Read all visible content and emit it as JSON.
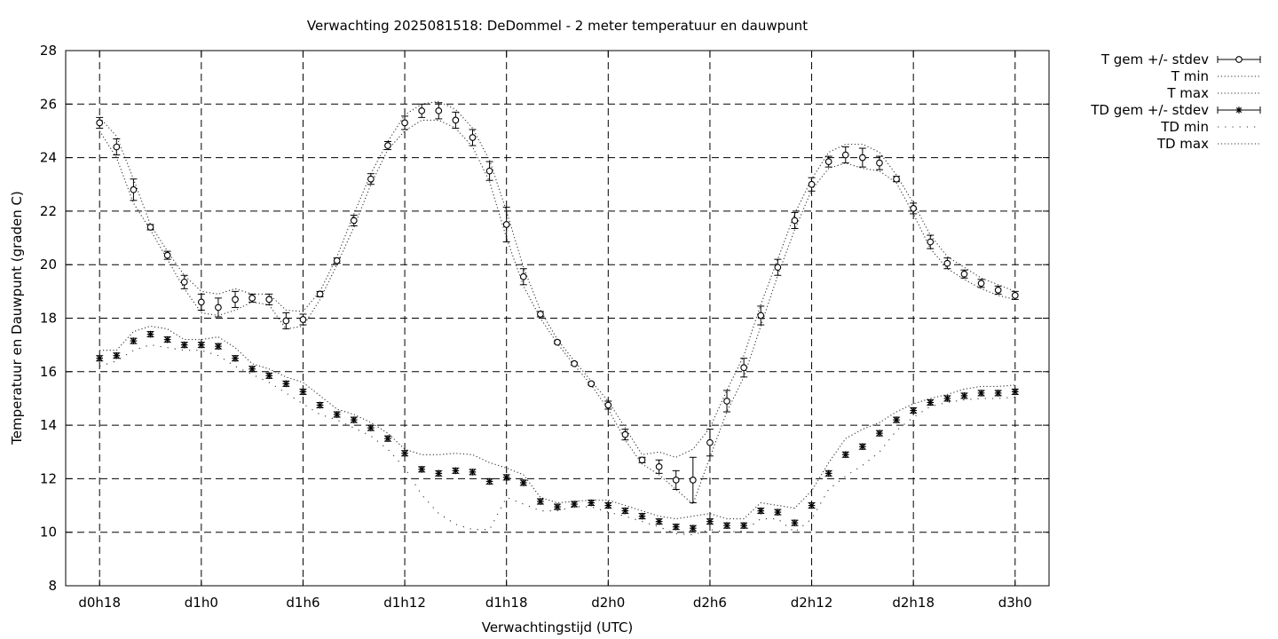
{
  "chart_data": {
    "type": "line",
    "title": "Verwachting 2025081518: DeDommel - 2 meter temperatuur en dauwpunt",
    "xlabel": "Verwachtingstijd (UTC)",
    "ylabel": "Temperatuur en Dauwpunt (graden C)",
    "x_ticks": [
      "d0h18",
      "d1h0",
      "d1h6",
      "d1h12",
      "d1h18",
      "d2h0",
      "d2h6",
      "d2h12",
      "d2h18",
      "d3h0"
    ],
    "x_unit": "hours since forecast start",
    "xlim": [
      -2,
      56
    ],
    "ylim": [
      8,
      28
    ],
    "y_ticks": [
      8,
      10,
      12,
      14,
      16,
      18,
      20,
      22,
      24,
      26,
      28
    ],
    "grid": true,
    "legend_position": "outside-top-right",
    "legend": [
      "T gem +/- stdev",
      "T min",
      "T max",
      "TD gem +/- stdev",
      "TD min",
      "TD max"
    ],
    "x": [
      0,
      1,
      2,
      3,
      4,
      5,
      6,
      7,
      8,
      9,
      10,
      11,
      12,
      13,
      14,
      15,
      16,
      17,
      18,
      19,
      20,
      21,
      22,
      23,
      24,
      25,
      26,
      27,
      28,
      29,
      30,
      31,
      32,
      33,
      34,
      35,
      36,
      37,
      38,
      39,
      40,
      41,
      42,
      43,
      44,
      45,
      46,
      47,
      48,
      49,
      50,
      51,
      52,
      53,
      54
    ],
    "series": [
      {
        "name": "T gem +/- stdev",
        "marker": "circle",
        "values": [
          25.3,
          24.4,
          22.8,
          21.4,
          20.35,
          19.35,
          18.6,
          18.4,
          18.7,
          18.75,
          18.7,
          17.9,
          17.95,
          18.9,
          20.15,
          21.65,
          23.2,
          24.45,
          25.3,
          25.75,
          25.75,
          25.4,
          24.75,
          23.5,
          21.5,
          19.55,
          18.15,
          17.1,
          16.3,
          15.55,
          14.75,
          13.65,
          12.7,
          12.45,
          11.95,
          11.95,
          13.35,
          14.9,
          16.15,
          18.1,
          19.9,
          21.65,
          23.0,
          23.85,
          24.1,
          24.0,
          23.8,
          23.2,
          22.1,
          20.85,
          20.05,
          19.65,
          19.3,
          19.05,
          18.85
        ],
        "stdev": [
          0.2,
          0.3,
          0.4,
          0.1,
          0.15,
          0.25,
          0.3,
          0.35,
          0.3,
          0.15,
          0.2,
          0.3,
          0.2,
          0.1,
          0.1,
          0.2,
          0.2,
          0.15,
          0.25,
          0.25,
          0.3,
          0.3,
          0.3,
          0.35,
          0.65,
          0.3,
          0.1,
          0.05,
          0.05,
          0.05,
          0.15,
          0.2,
          0.1,
          0.25,
          0.35,
          0.85,
          0.5,
          0.4,
          0.35,
          0.35,
          0.3,
          0.3,
          0.25,
          0.2,
          0.3,
          0.35,
          0.25,
          0.1,
          0.2,
          0.25,
          0.2,
          0.15,
          0.15,
          0.15,
          0.15
        ]
      },
      {
        "name": "T min",
        "style": "dotted",
        "values": [
          25.0,
          24.0,
          22.3,
          21.3,
          20.2,
          19.1,
          18.2,
          18.1,
          18.3,
          18.6,
          18.5,
          17.6,
          17.7,
          18.7,
          20.0,
          21.4,
          23.0,
          24.3,
          25.0,
          25.4,
          25.4,
          25.1,
          24.4,
          23.1,
          21.0,
          19.2,
          18.0,
          17.05,
          16.25,
          15.5,
          14.6,
          13.45,
          12.55,
          12.15,
          11.6,
          11.05,
          12.8,
          14.5,
          15.8,
          17.7,
          19.6,
          21.3,
          22.8,
          23.6,
          23.8,
          23.6,
          23.5,
          23.05,
          21.9,
          20.6,
          19.85,
          19.45,
          19.1,
          18.85,
          18.7
        ]
      },
      {
        "name": "T max",
        "style": "dotted",
        "values": [
          25.5,
          24.8,
          23.2,
          21.5,
          20.5,
          19.6,
          19.0,
          18.9,
          19.1,
          18.9,
          18.9,
          18.3,
          18.25,
          19.0,
          20.3,
          21.9,
          23.4,
          24.6,
          25.6,
          26.0,
          26.1,
          25.8,
          25.1,
          23.9,
          22.0,
          19.9,
          18.3,
          17.2,
          16.4,
          15.65,
          14.9,
          13.9,
          12.9,
          13.0,
          12.8,
          13.1,
          13.9,
          15.3,
          16.6,
          18.5,
          20.2,
          21.9,
          23.2,
          24.2,
          24.5,
          24.5,
          24.2,
          23.35,
          22.3,
          21.1,
          20.3,
          19.9,
          19.5,
          19.25,
          19.0
        ]
      },
      {
        "name": "TD gem +/- stdev",
        "marker": "star",
        "values": [
          16.5,
          16.6,
          17.15,
          17.4,
          17.2,
          17.0,
          17.0,
          16.95,
          16.5,
          16.1,
          15.85,
          15.55,
          15.25,
          14.75,
          14.4,
          14.2,
          13.9,
          13.5,
          12.95,
          12.35,
          12.2,
          12.3,
          12.25,
          11.9,
          12.05,
          11.85,
          11.15,
          10.95,
          11.05,
          11.1,
          11.0,
          10.8,
          10.6,
          10.4,
          10.2,
          10.15,
          10.4,
          10.25,
          10.25,
          10.8,
          10.75,
          10.35,
          11.0,
          12.2,
          12.9,
          13.2,
          13.7,
          14.2,
          14.55,
          14.85,
          15.0,
          15.1,
          15.2,
          15.2,
          15.25
        ]
      },
      {
        "name": "TD min",
        "style": "sparse-dotted",
        "values": [
          16.2,
          16.4,
          16.8,
          17.0,
          16.9,
          16.8,
          16.8,
          16.6,
          16.2,
          15.9,
          15.6,
          15.2,
          14.8,
          14.4,
          14.2,
          13.9,
          13.6,
          13.1,
          12.4,
          11.4,
          10.7,
          10.3,
          10.1,
          10.1,
          11.3,
          11.05,
          10.8,
          10.8,
          10.95,
          10.95,
          10.75,
          10.6,
          10.4,
          10.2,
          9.95,
          9.9,
          10.1,
          10.0,
          10.05,
          10.5,
          10.5,
          10.0,
          10.5,
          11.6,
          12.1,
          12.5,
          13.0,
          13.8,
          14.3,
          14.7,
          14.85,
          14.95,
          15.0,
          15.0,
          15.05
        ]
      },
      {
        "name": "TD max",
        "style": "dotted",
        "values": [
          16.8,
          16.8,
          17.5,
          17.7,
          17.6,
          17.2,
          17.2,
          17.3,
          16.9,
          16.3,
          16.1,
          15.8,
          15.6,
          15.1,
          14.6,
          14.4,
          14.1,
          13.7,
          13.1,
          12.9,
          12.9,
          12.95,
          12.9,
          12.6,
          12.4,
          12.15,
          11.3,
          11.1,
          11.15,
          11.2,
          11.2,
          11.0,
          10.8,
          10.6,
          10.5,
          10.6,
          10.7,
          10.5,
          10.5,
          11.1,
          11.0,
          10.9,
          11.55,
          12.6,
          13.5,
          13.85,
          14.1,
          14.5,
          14.8,
          15.0,
          15.15,
          15.35,
          15.45,
          15.45,
          15.5
        ]
      }
    ]
  }
}
